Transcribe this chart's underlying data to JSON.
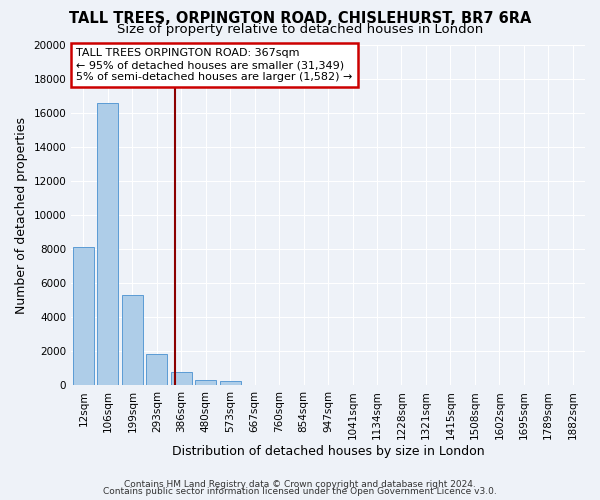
{
  "title": "TALL TREES, ORPINGTON ROAD, CHISLEHURST, BR7 6RA",
  "subtitle": "Size of property relative to detached houses in London",
  "xlabel": "Distribution of detached houses by size in London",
  "ylabel": "Number of detached properties",
  "bar_labels": [
    "12sqm",
    "106sqm",
    "199sqm",
    "293sqm",
    "386sqm",
    "480sqm",
    "573sqm",
    "667sqm",
    "760sqm",
    "854sqm",
    "947sqm",
    "1041sqm",
    "1134sqm",
    "1228sqm",
    "1321sqm",
    "1415sqm",
    "1508sqm",
    "1602sqm",
    "1695sqm",
    "1789sqm",
    "1882sqm"
  ],
  "bar_values": [
    8100,
    16600,
    5300,
    1850,
    780,
    310,
    250,
    0,
    0,
    0,
    0,
    0,
    0,
    0,
    0,
    0,
    0,
    0,
    0,
    0,
    0
  ],
  "bar_color": "#aecde8",
  "bar_edge_color": "#5b9bd5",
  "property_line_x": 3.75,
  "property_line_color": "#8b0000",
  "annotation_title": "TALL TREES ORPINGTON ROAD: 367sqm",
  "annotation_line1": "← 95% of detached houses are smaller (31,349)",
  "annotation_line2": "5% of semi-detached houses are larger (1,582) →",
  "annotation_box_color": "#cc0000",
  "ylim": [
    0,
    20000
  ],
  "yticks": [
    0,
    2000,
    4000,
    6000,
    8000,
    10000,
    12000,
    14000,
    16000,
    18000,
    20000
  ],
  "footer1": "Contains HM Land Registry data © Crown copyright and database right 2024.",
  "footer2": "Contains public sector information licensed under the Open Government Licence v3.0.",
  "bg_color": "#eef2f8",
  "grid_color": "#ffffff",
  "title_fontsize": 10.5,
  "subtitle_fontsize": 9.5,
  "axis_label_fontsize": 9,
  "tick_fontsize": 7.5,
  "annotation_fontsize": 8,
  "footer_fontsize": 6.5
}
